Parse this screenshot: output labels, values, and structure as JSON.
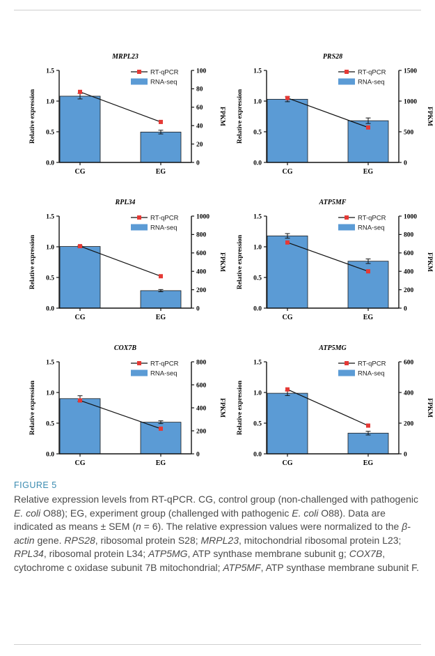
{
  "chart_data": [
    {
      "type": "bar",
      "title": "MRPL23",
      "categories": [
        "CG",
        "EG"
      ],
      "series": [
        {
          "name": "RT-qPCR",
          "axis": "left",
          "kind": "line",
          "values": [
            1.15,
            0.66
          ]
        },
        {
          "name": "RNA-seq",
          "axis": "right",
          "kind": "bar",
          "values": [
            72,
            33
          ],
          "errors": [
            3,
            2
          ]
        }
      ],
      "ylabel": "Relative expression",
      "ylabel2": "FPKM",
      "ylim": [
        0,
        1.5
      ],
      "yticks": [
        "0.0",
        "0.5",
        "1.0",
        "1.5"
      ],
      "ylim2": [
        0,
        100
      ],
      "yticks2": [
        "0",
        "20",
        "40",
        "60",
        "80",
        "100"
      ],
      "legend": "top-right"
    },
    {
      "type": "bar",
      "title": "PRS28",
      "categories": [
        "CG",
        "EG"
      ],
      "series": [
        {
          "name": "RT-qPCR",
          "axis": "left",
          "kind": "line",
          "values": [
            1.05,
            0.57
          ]
        },
        {
          "name": "RNA-seq",
          "axis": "right",
          "kind": "bar",
          "values": [
            1030,
            680
          ],
          "errors": [
            40,
            45
          ]
        }
      ],
      "ylabel": "Relative expression",
      "ylabel2": "FPKM",
      "ylim": [
        0,
        1.5
      ],
      "yticks": [
        "0.0",
        "0.5",
        "1.0",
        "1.5"
      ],
      "ylim2": [
        0,
        1500
      ],
      "yticks2": [
        "0",
        "500",
        "1000",
        "1500"
      ],
      "legend": "top-right"
    },
    {
      "type": "bar",
      "title": "RPL34",
      "categories": [
        "CG",
        "EG"
      ],
      "series": [
        {
          "name": "RT-qPCR",
          "axis": "left",
          "kind": "line",
          "values": [
            1.01,
            0.52
          ]
        },
        {
          "name": "RNA-seq",
          "axis": "right",
          "kind": "bar",
          "values": [
            670,
            190
          ],
          "errors": [
            10,
            12
          ]
        }
      ],
      "ylabel": "Relative expression",
      "ylabel2": "FPKM",
      "ylim": [
        0,
        1.5
      ],
      "yticks": [
        "0.0",
        "0.5",
        "1.0",
        "1.5"
      ],
      "ylim2": [
        0,
        1000
      ],
      "yticks2": [
        "0",
        "200",
        "400",
        "600",
        "800",
        "1000"
      ],
      "legend": "top-right"
    },
    {
      "type": "bar",
      "title": "ATP5MF",
      "categories": [
        "CG",
        "EG"
      ],
      "series": [
        {
          "name": "RT-qPCR",
          "axis": "left",
          "kind": "line",
          "values": [
            1.07,
            0.6
          ]
        },
        {
          "name": "RNA-seq",
          "axis": "right",
          "kind": "bar",
          "values": [
            785,
            510
          ],
          "errors": [
            25,
            25
          ]
        }
      ],
      "ylabel": "Relative expression",
      "ylabel2": "FPKM",
      "ylim": [
        0,
        1.5
      ],
      "yticks": [
        "0.0",
        "0.5",
        "1.0",
        "1.5"
      ],
      "ylim2": [
        0,
        1000
      ],
      "yticks2": [
        "0",
        "200",
        "400",
        "600",
        "800",
        "1000"
      ],
      "legend": "top-right"
    },
    {
      "type": "bar",
      "title": "COX7B",
      "categories": [
        "CG",
        "EG"
      ],
      "series": [
        {
          "name": "RT-qPCR",
          "axis": "left",
          "kind": "line",
          "values": [
            0.87,
            0.41
          ]
        },
        {
          "name": "RNA-seq",
          "axis": "right",
          "kind": "bar",
          "values": [
            480,
            275
          ],
          "errors": [
            25,
            12
          ]
        }
      ],
      "ylabel": "Relative expression",
      "ylabel2": "FPKM",
      "ylim": [
        0,
        1.5
      ],
      "yticks": [
        "0.0",
        "0.5",
        "1.0",
        "1.5"
      ],
      "ylim2": [
        0,
        800
      ],
      "yticks2": [
        "0",
        "200",
        "400",
        "600",
        "800"
      ],
      "legend": "top-right"
    },
    {
      "type": "bar",
      "title": "ATP5MG",
      "categories": [
        "CG",
        "EG"
      ],
      "series": [
        {
          "name": "RT-qPCR",
          "axis": "left",
          "kind": "line",
          "values": [
            1.05,
            0.46
          ]
        },
        {
          "name": "RNA-seq",
          "axis": "right",
          "kind": "bar",
          "values": [
            395,
            135
          ],
          "errors": [
            15,
            12
          ]
        }
      ],
      "ylabel": "Relative expression",
      "ylabel2": "FPKM",
      "ylim": [
        0,
        1.5
      ],
      "yticks": [
        "0.0",
        "0.5",
        "1.0",
        "1.5"
      ],
      "ylim2": [
        0,
        600
      ],
      "yticks2": [
        "0",
        "200",
        "400",
        "600"
      ],
      "legend": "top-right"
    }
  ],
  "colors": {
    "bar": "#5b9bd5",
    "line": "#111111",
    "marker": "#e53935"
  },
  "figure": {
    "label": "FIGURE 5"
  },
  "caption": {
    "t1": "Relative expression levels from RT-qPCR. CG, control group (non-challenged with pathogenic ",
    "t2": "E. coli",
    "t3": " O88); EG, experiment group (challenged with pathogenic ",
    "t4": "E. coli",
    "t5": " O88). Data are indicated as means ± SEM (",
    "t6": "n",
    "t7": " = 6). The relative expression values were normalized to the ",
    "t8": "β-actin",
    "t9": " gene. ",
    "t10": "RPS28",
    "t11": ", ribosomal protein S28; ",
    "t12": "MRPL23",
    "t13": ", mitochondrial ribosomal protein L23; ",
    "t14": "RPL34",
    "t15": ", ribosomal protein L34; ",
    "t16": "ATP5MG",
    "t17": ", ATP synthase membrane subunit g; ",
    "t18": "COX7B",
    "t19": ", cytochrome c oxidase subunit 7B mitochondrial; ",
    "t20": "ATP5MF",
    "t21": ", ATP synthase membrane subunit F."
  }
}
